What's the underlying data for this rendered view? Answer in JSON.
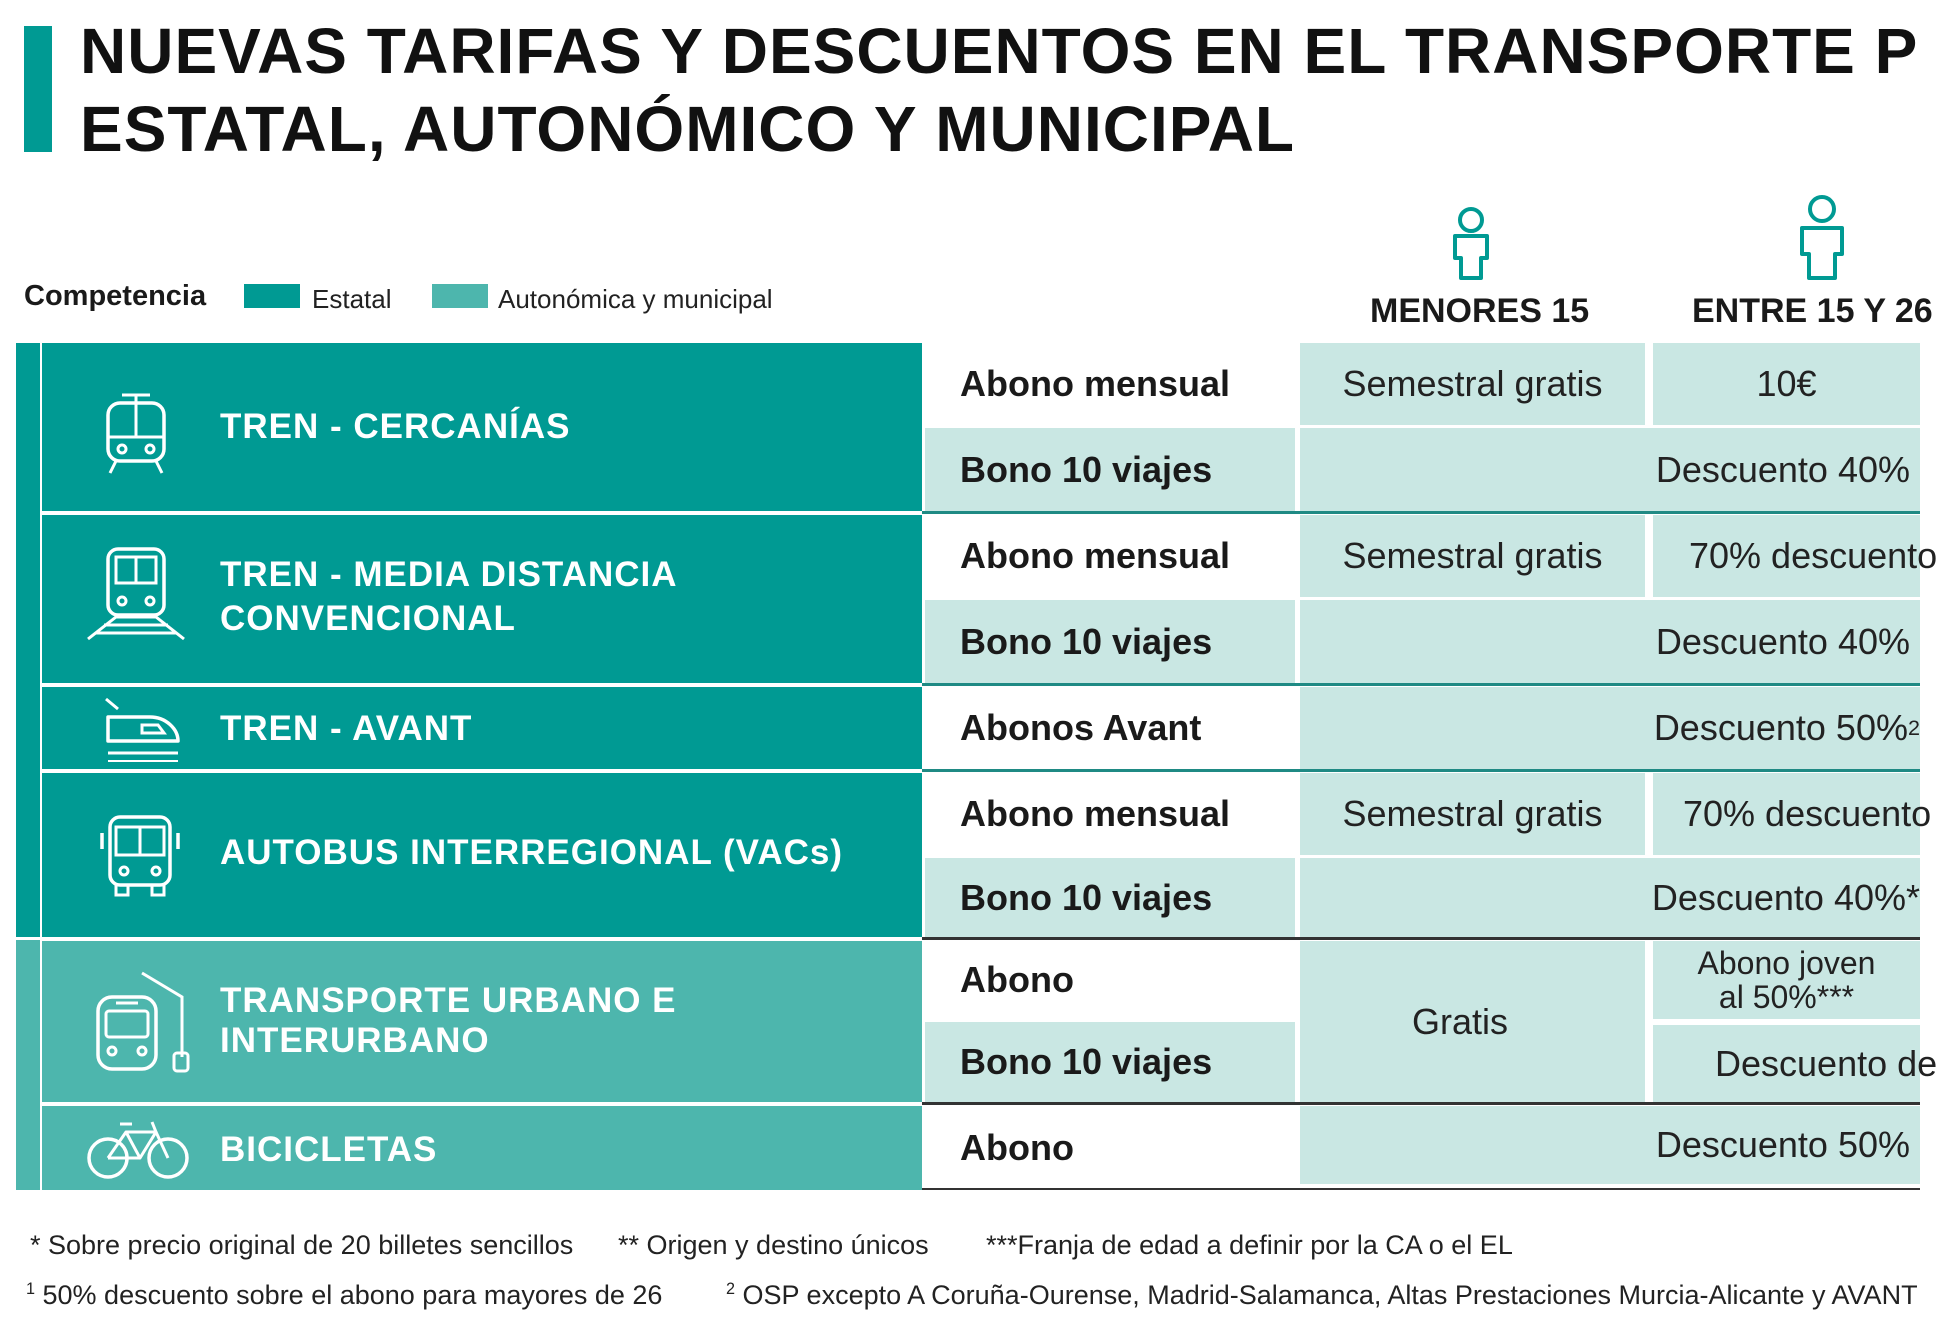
{
  "title": {
    "line1": "NUEVAS TARIFAS Y DESCUENTOS EN EL TRANSPORTE P",
    "line2": "ESTATAL, AUTONÓMICO Y MUNICIPAL"
  },
  "legend": {
    "label": "Competencia",
    "estatal": "Estatal",
    "autonomica": "Autonómica y municipal"
  },
  "colors": {
    "estatal": "#009a93",
    "autonomica": "#4db6ad",
    "cell_light": "#c9e7e3"
  },
  "columns": {
    "menores": "MENORES 15",
    "entre": "ENTRE 15 Y 26"
  },
  "modes": {
    "cercanias": "TREN - CERCANÍAS",
    "media_1": "TREN - MEDIA DISTANCIA",
    "media_2": "CONVENCIONAL",
    "avant": "TREN - AVANT",
    "autobus": "AUTOBUS INTERREGIONAL (VACs)",
    "urbano_1": "TRANSPORTE URBANO E",
    "urbano_2": "INTERURBANO",
    "bicicletas": "BICICLETAS"
  },
  "rows": {
    "cercanias_abono": "Abono mensual",
    "cercanias_abono_menores": "Semestral gratis",
    "cercanias_abono_entre": "10€",
    "cercanias_bono": "Bono 10 viajes",
    "cercanias_bono_value": "Descuento 40%",
    "media_abono": "Abono mensual",
    "media_abono_menores": "Semestral gratis",
    "media_abono_entre": "70% descuento",
    "media_bono": "Bono 10 viajes",
    "media_bono_value": "Descuento 40%",
    "avant_abono": "Abonos Avant",
    "avant_value": "Descuento 50%",
    "avant_sup": "2",
    "bus_abono": "Abono mensual",
    "bus_abono_menores": "Semestral gratis",
    "bus_abono_entre": "70% descuento",
    "bus_bono": "Bono 10 viajes",
    "bus_bono_value": "Descuento 40%*",
    "urb_abono": "Abono",
    "urb_bono": "Bono 10 viajes",
    "urb_menores": "Gratis",
    "urb_abono_entre_1": "Abono joven",
    "urb_abono_entre_2": "al 50%***",
    "urb_bono_entre": "Descuento de",
    "bici_abono": "Abono",
    "bici_value": "Descuento 50%"
  },
  "footnotes": {
    "f1": "* Sobre precio original de 20 billetes sencillos",
    "f2": "** Origen y destino únicos",
    "f3": "***Franja de edad a definir por la CA o el EL",
    "f4_sup": "1",
    "f4": " 50% descuento sobre el abono para mayores de 26",
    "f5_sup": "2",
    "f5": " OSP excepto A Coruña-Ourense, Madrid-Salamanca, Altas Prestaciones  Murcia-Alicante y AVANT"
  }
}
